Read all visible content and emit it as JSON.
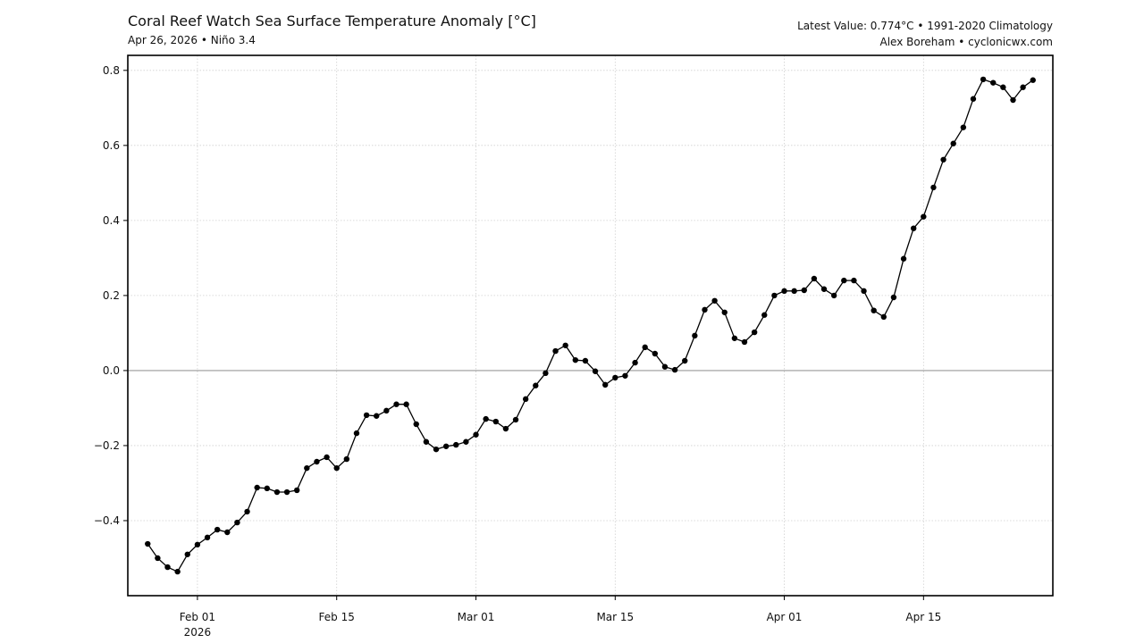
{
  "header": {
    "title": "Coral Reef Watch Sea Surface Temperature Anomaly [°C]",
    "subtitle": "Apr 26, 2026 • Niño 3.4",
    "info_line1": "Latest Value: 0.774°C • 1991-2020 Climatology",
    "info_line2": "Alex Boreham • cyclonicwx.com"
  },
  "chart_data": {
    "type": "line",
    "title": "Coral Reef Watch Sea Surface Temperature Anomaly [°C]",
    "xlabel": "",
    "ylabel": "",
    "ylim": [
      -0.6,
      0.84
    ],
    "xlim": [
      "2026-01-25",
      "2026-04-28"
    ],
    "grid": true,
    "zero_line": true,
    "line_color": "#000000",
    "marker": "circle",
    "y_ticks": [
      -0.4,
      -0.2,
      0.0,
      0.2,
      0.4,
      0.6,
      0.8
    ],
    "y_tick_labels": [
      "−0.4",
      "−0.2",
      "0.0",
      "0.2",
      "0.4",
      "0.6",
      "0.8"
    ],
    "x_ticks": [
      "2026-02-01",
      "2026-02-15",
      "2026-03-01",
      "2026-03-15",
      "2026-04-01",
      "2026-04-15"
    ],
    "x_tick_labels": [
      "Feb 01",
      "Feb 15",
      "Mar 01",
      "Mar 15",
      "Apr 01",
      "Apr 15"
    ],
    "x_tick_sublabel": "2026",
    "x": [
      "2026-01-27",
      "2026-01-28",
      "2026-01-29",
      "2026-01-30",
      "2026-01-31",
      "2026-02-01",
      "2026-02-02",
      "2026-02-03",
      "2026-02-04",
      "2026-02-05",
      "2026-02-06",
      "2026-02-07",
      "2026-02-08",
      "2026-02-09",
      "2026-02-10",
      "2026-02-11",
      "2026-02-12",
      "2026-02-13",
      "2026-02-14",
      "2026-02-15",
      "2026-02-16",
      "2026-02-17",
      "2026-02-18",
      "2026-02-19",
      "2026-02-20",
      "2026-02-21",
      "2026-02-22",
      "2026-02-23",
      "2026-02-24",
      "2026-02-25",
      "2026-02-26",
      "2026-02-27",
      "2026-02-28",
      "2026-03-01",
      "2026-03-02",
      "2026-03-03",
      "2026-03-04",
      "2026-03-05",
      "2026-03-06",
      "2026-03-07",
      "2026-03-08",
      "2026-03-09",
      "2026-03-10",
      "2026-03-11",
      "2026-03-12",
      "2026-03-13",
      "2026-03-14",
      "2026-03-15",
      "2026-03-16",
      "2026-03-17",
      "2026-03-18",
      "2026-03-19",
      "2026-03-20",
      "2026-03-21",
      "2026-03-22",
      "2026-03-23",
      "2026-03-24",
      "2026-03-25",
      "2026-03-26",
      "2026-03-27",
      "2026-03-28",
      "2026-03-29",
      "2026-03-30",
      "2026-03-31",
      "2026-04-01",
      "2026-04-02",
      "2026-04-03",
      "2026-04-04",
      "2026-04-05",
      "2026-04-06",
      "2026-04-07",
      "2026-04-08",
      "2026-04-09",
      "2026-04-10",
      "2026-04-11",
      "2026-04-12",
      "2026-04-13",
      "2026-04-14",
      "2026-04-15",
      "2026-04-16",
      "2026-04-17",
      "2026-04-18",
      "2026-04-19",
      "2026-04-20",
      "2026-04-21",
      "2026-04-22",
      "2026-04-23",
      "2026-04-24",
      "2026-04-25",
      "2026-04-26"
    ],
    "values": [
      -0.462,
      -0.5,
      -0.524,
      -0.536,
      -0.49,
      -0.464,
      -0.445,
      -0.424,
      -0.431,
      -0.405,
      -0.376,
      -0.312,
      -0.314,
      -0.324,
      -0.324,
      -0.319,
      -0.26,
      -0.243,
      -0.231,
      -0.26,
      -0.236,
      -0.167,
      -0.119,
      -0.121,
      -0.107,
      -0.09,
      -0.09,
      -0.143,
      -0.19,
      -0.21,
      -0.202,
      -0.198,
      -0.19,
      -0.171,
      -0.129,
      -0.136,
      -0.155,
      -0.131,
      -0.076,
      -0.04,
      -0.007,
      0.052,
      0.067,
      0.028,
      0.026,
      -0.002,
      -0.038,
      -0.019,
      -0.014,
      0.021,
      0.062,
      0.045,
      0.01,
      0.002,
      0.026,
      0.093,
      0.162,
      0.186,
      0.155,
      0.086,
      0.076,
      0.102,
      0.148,
      0.2,
      0.212,
      0.212,
      0.214,
      0.245,
      0.217,
      0.2,
      0.24,
      0.24,
      0.212,
      0.16,
      0.143,
      0.195,
      0.298,
      0.379,
      0.41,
      0.488,
      0.562,
      0.605,
      0.648,
      0.724,
      0.776,
      0.767,
      0.755,
      0.721,
      0.755,
      0.774
    ]
  }
}
